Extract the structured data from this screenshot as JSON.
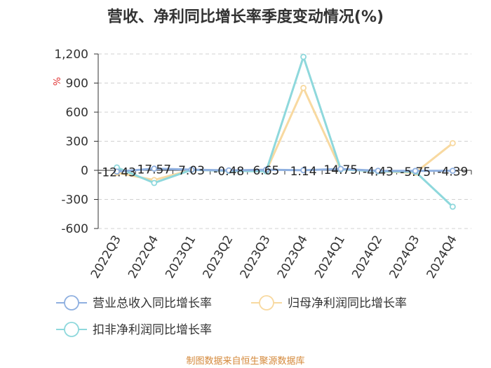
{
  "chart_data": {
    "type": "line",
    "title": "营收、净利同比增长率季度变动情况(%)",
    "unit": "%",
    "categories": [
      "2022Q3",
      "2022Q4",
      "2023Q1",
      "2023Q2",
      "2023Q3",
      "2023Q4",
      "2024Q1",
      "2024Q2",
      "2024Q3",
      "2024Q4"
    ],
    "ylim": [
      -600,
      1200
    ],
    "yticks": [
      -600,
      -300,
      0,
      300,
      600,
      900,
      1200
    ],
    "ytick_labels": [
      "-600",
      "-300",
      "0",
      "300",
      "600",
      "900",
      "1,200"
    ],
    "grid": true,
    "legend_position": "bottom",
    "series": [
      {
        "name": "营业总收入同比增长率",
        "color": "#8fb0e0",
        "values": [
          -12.43,
          17.57,
          7.03,
          -0.48,
          6.65,
          1.14,
          14.75,
          -4.43,
          -5.75,
          -4.39
        ],
        "labels": [
          "-12.43",
          "17.57",
          "7.03",
          "-0.48",
          "6.65",
          "1.14",
          "14.75",
          "-4.43",
          "-5.75",
          "-4.39"
        ]
      },
      {
        "name": "归母净利润同比增长率",
        "color": "#f8d9a0",
        "values": [
          -25,
          -100,
          5,
          -5,
          -10,
          850,
          10,
          -10,
          -25,
          280
        ]
      },
      {
        "name": "扣非净利润同比增长率",
        "color": "#8ed8dc",
        "values": [
          30,
          -130,
          5,
          -5,
          -10,
          1170,
          10,
          -10,
          -15,
          -375
        ]
      }
    ]
  },
  "source_text": "制图数据来自恒生聚源数据库"
}
